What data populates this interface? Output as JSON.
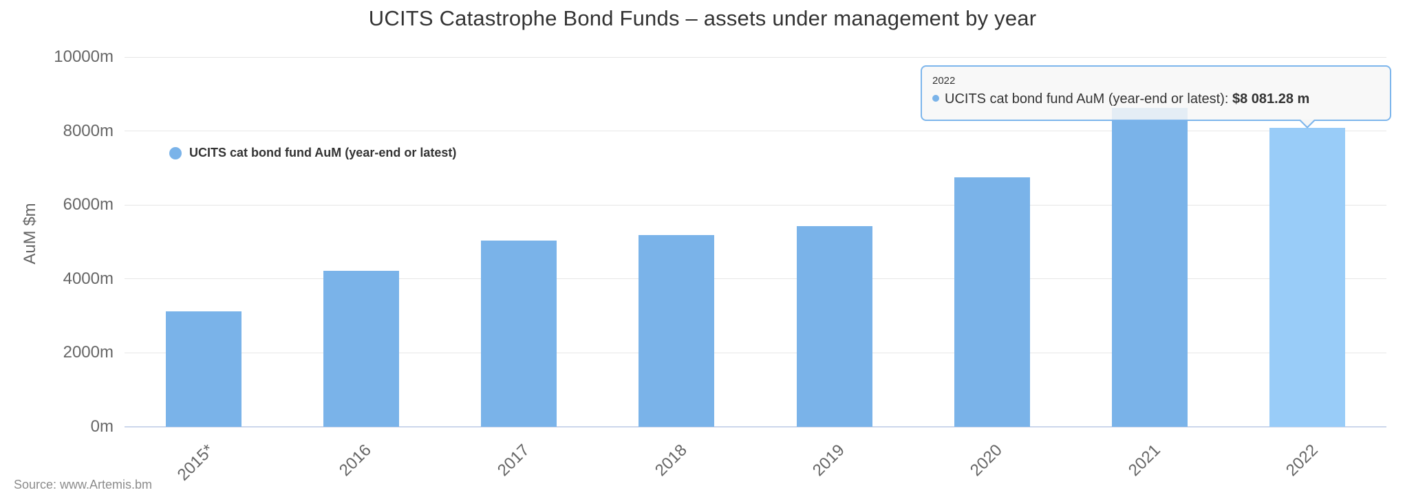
{
  "chart_data": {
    "type": "bar",
    "title": "UCITS Catastrophe Bond Funds – assets under management by year",
    "categories": [
      "2015*",
      "2016",
      "2017",
      "2018",
      "2019",
      "2020",
      "2021",
      "2022"
    ],
    "series": [
      {
        "name": "UCITS cat bond fund AuM (year-end or latest)",
        "values": [
          3130,
          4220,
          5040,
          5190,
          5430,
          6750,
          8630,
          8081.28
        ]
      }
    ],
    "xlabel": "",
    "ylabel": "AuM $m",
    "ylim": [
      0,
      10000
    ],
    "yticks": [
      0,
      2000,
      4000,
      6000,
      8000,
      10000
    ],
    "ytick_labels": [
      "0m",
      "2000m",
      "4000m",
      "6000m",
      "8000m",
      "10000m"
    ],
    "grid": true,
    "legend_position": "top-left",
    "highlight_index": 7,
    "colors": {
      "bar": "#7ab3e9",
      "bar_highlight": "#99ccf8",
      "grid_line": "#e6e6e6",
      "axis_line": "#ccd6eb",
      "title_text": "#333333",
      "axis_text": "#666666",
      "tooltip_border": "#7cb5ec"
    }
  },
  "legend": {
    "label": "UCITS cat bond fund AuM (year-end or latest)"
  },
  "tooltip": {
    "header": "2022",
    "series_label": "UCITS cat bond fund AuM (year-end or latest): ",
    "value": "$8 081.28 m"
  },
  "footer": {
    "source": "Source: www.Artemis.bm"
  }
}
